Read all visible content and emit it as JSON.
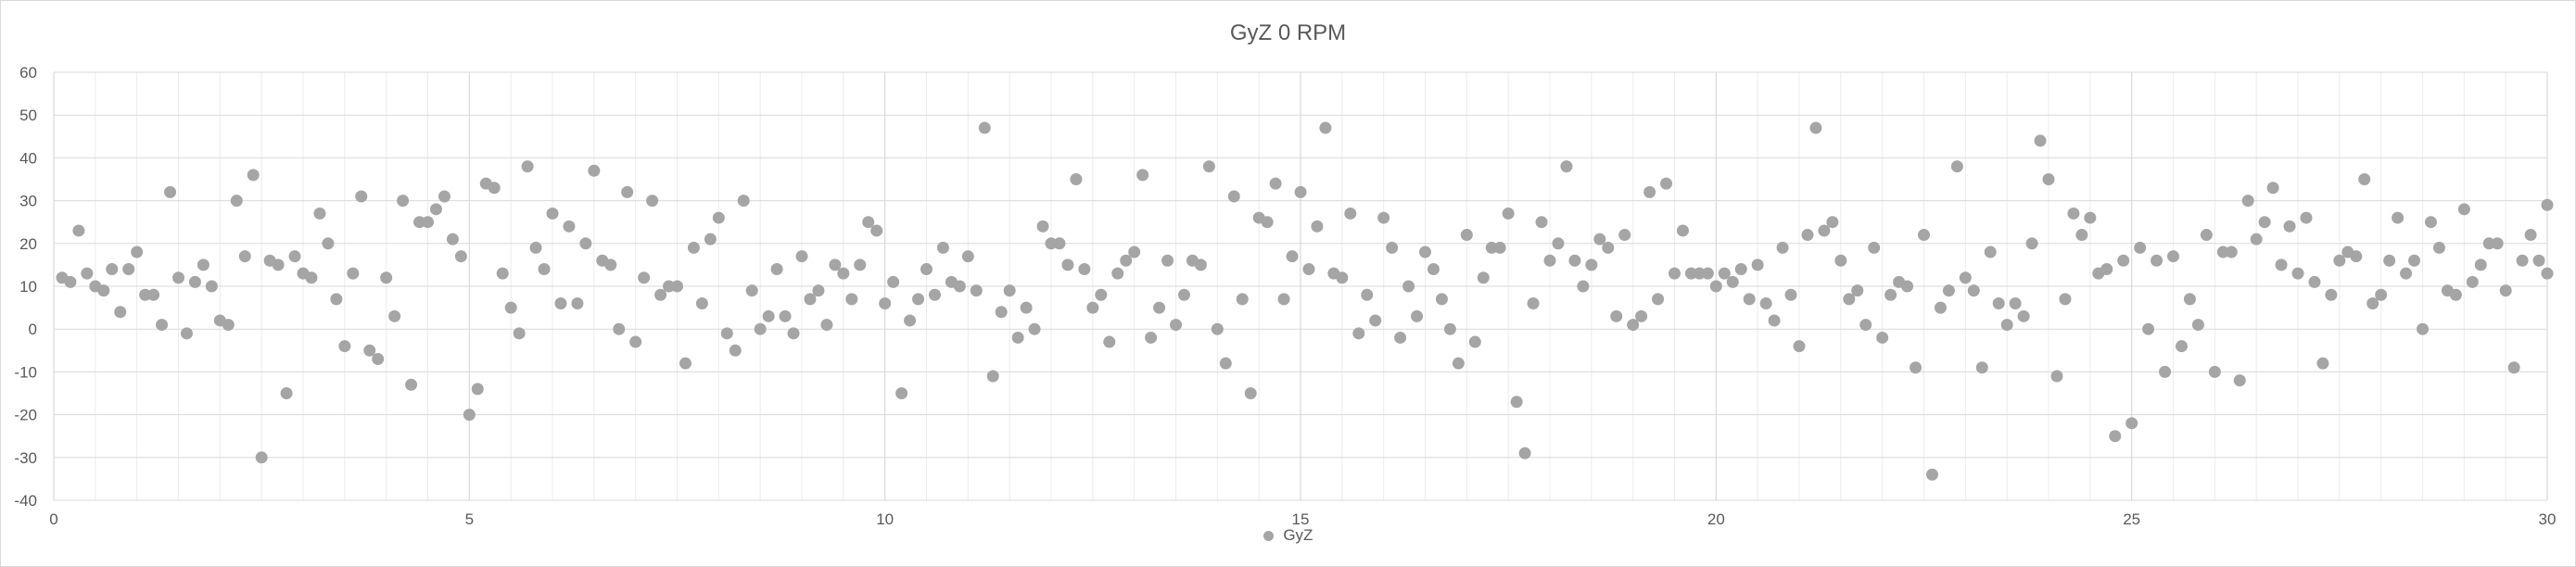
{
  "chart_data": {
    "type": "scatter",
    "title": "GyZ 0 RPM",
    "xlabel": "",
    "ylabel": "",
    "xlim": [
      0,
      30
    ],
    "ylim": [
      -40,
      60
    ],
    "x_ticks": [
      0,
      5,
      10,
      15,
      20,
      25,
      30
    ],
    "y_ticks": [
      -40,
      -30,
      -20,
      -10,
      0,
      10,
      20,
      30,
      40,
      50,
      60
    ],
    "grid": true,
    "legend_position": "bottom",
    "marker_color": "#a5a5a5",
    "series": [
      {
        "name": "GyZ",
        "points": [
          [
            0.1,
            12
          ],
          [
            0.2,
            11
          ],
          [
            0.3,
            23
          ],
          [
            0.4,
            13
          ],
          [
            0.5,
            10
          ],
          [
            0.6,
            9
          ],
          [
            0.7,
            14
          ],
          [
            0.8,
            4
          ],
          [
            0.9,
            14
          ],
          [
            1.0,
            18
          ],
          [
            1.1,
            8
          ],
          [
            1.2,
            8
          ],
          [
            1.3,
            1
          ],
          [
            1.4,
            32
          ],
          [
            1.5,
            12
          ],
          [
            1.6,
            -1
          ],
          [
            1.7,
            11
          ],
          [
            1.8,
            15
          ],
          [
            1.9,
            10
          ],
          [
            2.0,
            2
          ],
          [
            2.1,
            1
          ],
          [
            2.2,
            30
          ],
          [
            2.3,
            17
          ],
          [
            2.4,
            36
          ],
          [
            2.5,
            -30
          ],
          [
            2.6,
            16
          ],
          [
            2.7,
            15
          ],
          [
            2.8,
            -15
          ],
          [
            2.9,
            17
          ],
          [
            3.0,
            13
          ],
          [
            3.1,
            12
          ],
          [
            3.2,
            27
          ],
          [
            3.3,
            20
          ],
          [
            3.4,
            7
          ],
          [
            3.5,
            -4
          ],
          [
            3.6,
            13
          ],
          [
            3.7,
            31
          ],
          [
            3.8,
            -5
          ],
          [
            3.9,
            -7
          ],
          [
            4.0,
            12
          ],
          [
            4.1,
            3
          ],
          [
            4.2,
            30
          ],
          [
            4.3,
            -13
          ],
          [
            4.4,
            25
          ],
          [
            4.5,
            25
          ],
          [
            4.6,
            28
          ],
          [
            4.7,
            31
          ],
          [
            4.8,
            21
          ],
          [
            4.9,
            17
          ],
          [
            5.0,
            -20
          ],
          [
            5.1,
            -14
          ],
          [
            5.2,
            34
          ],
          [
            5.3,
            33
          ],
          [
            5.4,
            13
          ],
          [
            5.5,
            5
          ],
          [
            5.6,
            -1
          ],
          [
            5.7,
            38
          ],
          [
            5.8,
            19
          ],
          [
            5.9,
            14
          ],
          [
            6.0,
            27
          ],
          [
            6.1,
            6
          ],
          [
            6.2,
            24
          ],
          [
            6.3,
            6
          ],
          [
            6.4,
            20
          ],
          [
            6.5,
            37
          ],
          [
            6.6,
            16
          ],
          [
            6.7,
            15
          ],
          [
            6.8,
            0
          ],
          [
            6.9,
            32
          ],
          [
            7.0,
            -3
          ],
          [
            7.1,
            12
          ],
          [
            7.2,
            30
          ],
          [
            7.3,
            8
          ],
          [
            7.4,
            10
          ],
          [
            7.5,
            10
          ],
          [
            7.6,
            -8
          ],
          [
            7.7,
            19
          ],
          [
            7.8,
            6
          ],
          [
            7.9,
            21
          ],
          [
            8.0,
            26
          ],
          [
            8.1,
            -1
          ],
          [
            8.2,
            -5
          ],
          [
            8.3,
            30
          ],
          [
            8.4,
            9
          ],
          [
            8.5,
            0
          ],
          [
            8.6,
            3
          ],
          [
            8.7,
            14
          ],
          [
            8.8,
            3
          ],
          [
            8.9,
            -1
          ],
          [
            9.0,
            17
          ],
          [
            9.1,
            7
          ],
          [
            9.2,
            9
          ],
          [
            9.3,
            1
          ],
          [
            9.4,
            15
          ],
          [
            9.5,
            13
          ],
          [
            9.6,
            7
          ],
          [
            9.7,
            15
          ],
          [
            9.8,
            25
          ],
          [
            9.9,
            23
          ],
          [
            10.0,
            6
          ],
          [
            10.1,
            11
          ],
          [
            10.2,
            -15
          ],
          [
            10.3,
            2
          ],
          [
            10.4,
            7
          ],
          [
            10.5,
            14
          ],
          [
            10.6,
            8
          ],
          [
            10.7,
            19
          ],
          [
            10.8,
            11
          ],
          [
            10.9,
            10
          ],
          [
            11.0,
            17
          ],
          [
            11.1,
            9
          ],
          [
            11.2,
            47
          ],
          [
            11.3,
            -11
          ],
          [
            11.4,
            4
          ],
          [
            11.5,
            9
          ],
          [
            11.6,
            -2
          ],
          [
            11.7,
            5
          ],
          [
            11.8,
            0
          ],
          [
            11.9,
            24
          ],
          [
            12.0,
            20
          ],
          [
            12.1,
            20
          ],
          [
            12.2,
            15
          ],
          [
            12.3,
            35
          ],
          [
            12.4,
            14
          ],
          [
            12.5,
            5
          ],
          [
            12.6,
            8
          ],
          [
            12.7,
            -3
          ],
          [
            12.8,
            13
          ],
          [
            12.9,
            16
          ],
          [
            13.0,
            18
          ],
          [
            13.1,
            36
          ],
          [
            13.2,
            -2
          ],
          [
            13.3,
            5
          ],
          [
            13.4,
            16
          ],
          [
            13.5,
            1
          ],
          [
            13.6,
            8
          ],
          [
            13.7,
            16
          ],
          [
            13.8,
            15
          ],
          [
            13.9,
            38
          ],
          [
            14.0,
            0
          ],
          [
            14.1,
            -8
          ],
          [
            14.2,
            31
          ],
          [
            14.3,
            7
          ],
          [
            14.4,
            -15
          ],
          [
            14.5,
            26
          ],
          [
            14.6,
            25
          ],
          [
            14.7,
            34
          ],
          [
            14.8,
            7
          ],
          [
            14.9,
            17
          ],
          [
            15.0,
            32
          ],
          [
            15.1,
            14
          ],
          [
            15.2,
            24
          ],
          [
            15.3,
            47
          ],
          [
            15.4,
            13
          ],
          [
            15.5,
            12
          ],
          [
            15.6,
            27
          ],
          [
            15.7,
            -1
          ],
          [
            15.8,
            8
          ],
          [
            15.9,
            2
          ],
          [
            16.0,
            26
          ],
          [
            16.1,
            19
          ],
          [
            16.2,
            -2
          ],
          [
            16.3,
            10
          ],
          [
            16.4,
            3
          ],
          [
            16.5,
            18
          ],
          [
            16.6,
            14
          ],
          [
            16.7,
            7
          ],
          [
            16.8,
            0
          ],
          [
            16.9,
            -8
          ],
          [
            17.0,
            22
          ],
          [
            17.1,
            -3
          ],
          [
            17.2,
            12
          ],
          [
            17.3,
            19
          ],
          [
            17.4,
            19
          ],
          [
            17.5,
            27
          ],
          [
            17.6,
            -17
          ],
          [
            17.7,
            -29
          ],
          [
            17.8,
            6
          ],
          [
            17.9,
            25
          ],
          [
            18.0,
            16
          ],
          [
            18.1,
            20
          ],
          [
            18.2,
            38
          ],
          [
            18.3,
            16
          ],
          [
            18.4,
            10
          ],
          [
            18.5,
            15
          ],
          [
            18.6,
            21
          ],
          [
            18.7,
            19
          ],
          [
            18.8,
            3
          ],
          [
            18.9,
            22
          ],
          [
            19.0,
            1
          ],
          [
            19.1,
            3
          ],
          [
            19.2,
            32
          ],
          [
            19.3,
            7
          ],
          [
            19.4,
            34
          ],
          [
            19.5,
            13
          ],
          [
            19.6,
            23
          ],
          [
            19.7,
            13
          ],
          [
            19.8,
            13
          ],
          [
            19.9,
            13
          ],
          [
            20.0,
            10
          ],
          [
            20.1,
            13
          ],
          [
            20.2,
            11
          ],
          [
            20.3,
            14
          ],
          [
            20.4,
            7
          ],
          [
            20.5,
            15
          ],
          [
            20.6,
            6
          ],
          [
            20.7,
            2
          ],
          [
            20.8,
            19
          ],
          [
            20.9,
            8
          ],
          [
            21.0,
            -4
          ],
          [
            21.1,
            22
          ],
          [
            21.2,
            47
          ],
          [
            21.3,
            23
          ],
          [
            21.4,
            25
          ],
          [
            21.5,
            16
          ],
          [
            21.6,
            7
          ],
          [
            21.7,
            9
          ],
          [
            21.8,
            1
          ],
          [
            21.9,
            19
          ],
          [
            22.0,
            -2
          ],
          [
            22.1,
            8
          ],
          [
            22.2,
            11
          ],
          [
            22.3,
            10
          ],
          [
            22.4,
            -9
          ],
          [
            22.5,
            22
          ],
          [
            22.6,
            -34
          ],
          [
            22.7,
            5
          ],
          [
            22.8,
            9
          ],
          [
            22.9,
            38
          ],
          [
            23.0,
            12
          ],
          [
            23.1,
            9
          ],
          [
            23.2,
            -9
          ],
          [
            23.3,
            18
          ],
          [
            23.4,
            6
          ],
          [
            23.5,
            1
          ],
          [
            23.6,
            6
          ],
          [
            23.7,
            3
          ],
          [
            23.8,
            20
          ],
          [
            23.9,
            44
          ],
          [
            24.0,
            35
          ],
          [
            24.1,
            -11
          ],
          [
            24.2,
            7
          ],
          [
            24.3,
            27
          ],
          [
            24.4,
            22
          ],
          [
            24.5,
            26
          ],
          [
            24.6,
            13
          ],
          [
            24.7,
            14
          ],
          [
            24.8,
            -25
          ],
          [
            24.9,
            16
          ],
          [
            25.0,
            -22
          ],
          [
            25.1,
            19
          ],
          [
            25.2,
            0
          ],
          [
            25.3,
            16
          ],
          [
            25.4,
            -10
          ],
          [
            25.5,
            17
          ],
          [
            25.6,
            -4
          ],
          [
            25.7,
            7
          ],
          [
            25.8,
            1
          ],
          [
            25.9,
            22
          ],
          [
            26.0,
            -10
          ],
          [
            26.1,
            18
          ],
          [
            26.2,
            18
          ],
          [
            26.3,
            -12
          ],
          [
            26.4,
            30
          ],
          [
            26.5,
            21
          ],
          [
            26.6,
            25
          ],
          [
            26.7,
            33
          ],
          [
            26.8,
            15
          ],
          [
            26.9,
            24
          ],
          [
            27.0,
            13
          ],
          [
            27.1,
            26
          ],
          [
            27.2,
            11
          ],
          [
            27.3,
            -8
          ],
          [
            27.4,
            8
          ],
          [
            27.5,
            16
          ],
          [
            27.6,
            18
          ],
          [
            27.7,
            17
          ],
          [
            27.8,
            35
          ],
          [
            27.9,
            6
          ],
          [
            28.0,
            8
          ],
          [
            28.1,
            16
          ],
          [
            28.2,
            26
          ],
          [
            28.3,
            13
          ],
          [
            28.4,
            16
          ],
          [
            28.5,
            0
          ],
          [
            28.6,
            25
          ],
          [
            28.7,
            19
          ],
          [
            28.8,
            9
          ],
          [
            28.9,
            8
          ],
          [
            29.0,
            28
          ],
          [
            29.1,
            11
          ],
          [
            29.2,
            15
          ],
          [
            29.3,
            20
          ],
          [
            29.4,
            20
          ],
          [
            29.5,
            9
          ],
          [
            29.6,
            -9
          ],
          [
            29.7,
            16
          ],
          [
            29.8,
            22
          ],
          [
            29.9,
            16
          ],
          [
            30.0,
            13
          ],
          [
            30.0,
            29
          ]
        ]
      }
    ]
  }
}
